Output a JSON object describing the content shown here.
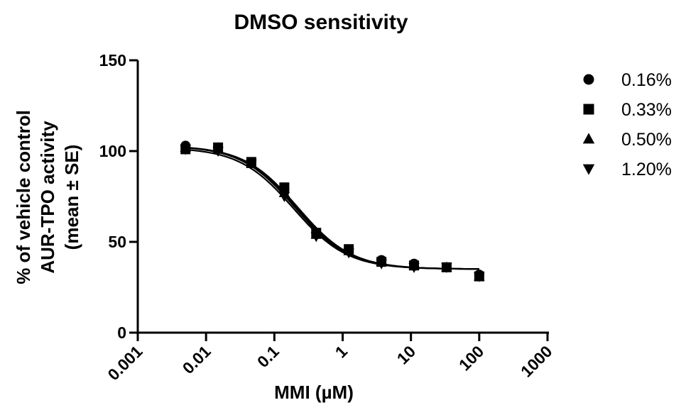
{
  "chart_data": {
    "type": "scatter",
    "title": "DMSO sensitivity",
    "xlabel": "MMI (µM)",
    "ylabel_lines": [
      "% of vehicle control",
      "AUR-TPO activity",
      "(mean ± SE)"
    ],
    "xscale": "log",
    "xlim": [
      0.001,
      1000
    ],
    "ylim": [
      0,
      150
    ],
    "xticks": [
      {
        "value": 0.001,
        "label": "0.001"
      },
      {
        "value": 0.01,
        "label": "0.01"
      },
      {
        "value": 0.1,
        "label": "0.1"
      },
      {
        "value": 1,
        "label": "1"
      },
      {
        "value": 10,
        "label": "10"
      },
      {
        "value": 100,
        "label": "100"
      },
      {
        "value": 1000,
        "label": "1000"
      }
    ],
    "yticks": [
      {
        "value": 0,
        "label": "0"
      },
      {
        "value": 50,
        "label": "50"
      },
      {
        "value": 100,
        "label": "100"
      },
      {
        "value": 150,
        "label": "150"
      }
    ],
    "grid": false,
    "legend_position": "right",
    "series": [
      {
        "name": "0.16%",
        "marker": "circle",
        "x": [
          0.005,
          0.015,
          0.046,
          0.14,
          0.41,
          1.23,
          3.7,
          11.1,
          33.3,
          100
        ],
        "y": [
          103,
          102,
          94,
          79,
          55,
          45,
          40,
          38,
          36,
          32
        ],
        "fit": {
          "top": 103,
          "bottom": 35,
          "ic50": 0.21,
          "hill": 1.1
        }
      },
      {
        "name": "0.33%",
        "marker": "square",
        "x": [
          0.005,
          0.015,
          0.046,
          0.14,
          0.41,
          1.23,
          3.7,
          11.1,
          33.3,
          100
        ],
        "y": [
          101,
          102,
          94,
          80,
          55,
          46,
          39,
          37,
          36,
          31
        ],
        "fit": {
          "top": 103,
          "bottom": 35,
          "ic50": 0.22,
          "hill": 1.1
        }
      },
      {
        "name": "0.50%",
        "marker": "triangle-up",
        "x": [
          0.005,
          0.015,
          0.046,
          0.14,
          0.41,
          1.23,
          3.7,
          11.1,
          33.3,
          100
        ],
        "y": [
          102,
          101,
          93,
          77,
          54,
          45,
          39,
          37,
          36,
          31
        ],
        "fit": {
          "top": 103,
          "bottom": 35,
          "ic50": 0.2,
          "hill": 1.1
        }
      },
      {
        "name": "1.20%",
        "marker": "triangle-down",
        "x": [
          0.005,
          0.015,
          0.046,
          0.14,
          0.41,
          1.23,
          3.7,
          11.1,
          33.3,
          100
        ],
        "y": [
          101,
          100,
          93,
          75,
          53,
          44,
          38,
          36,
          36,
          31
        ],
        "fit": {
          "top": 102,
          "bottom": 35,
          "ic50": 0.19,
          "hill": 1.1
        }
      }
    ]
  }
}
